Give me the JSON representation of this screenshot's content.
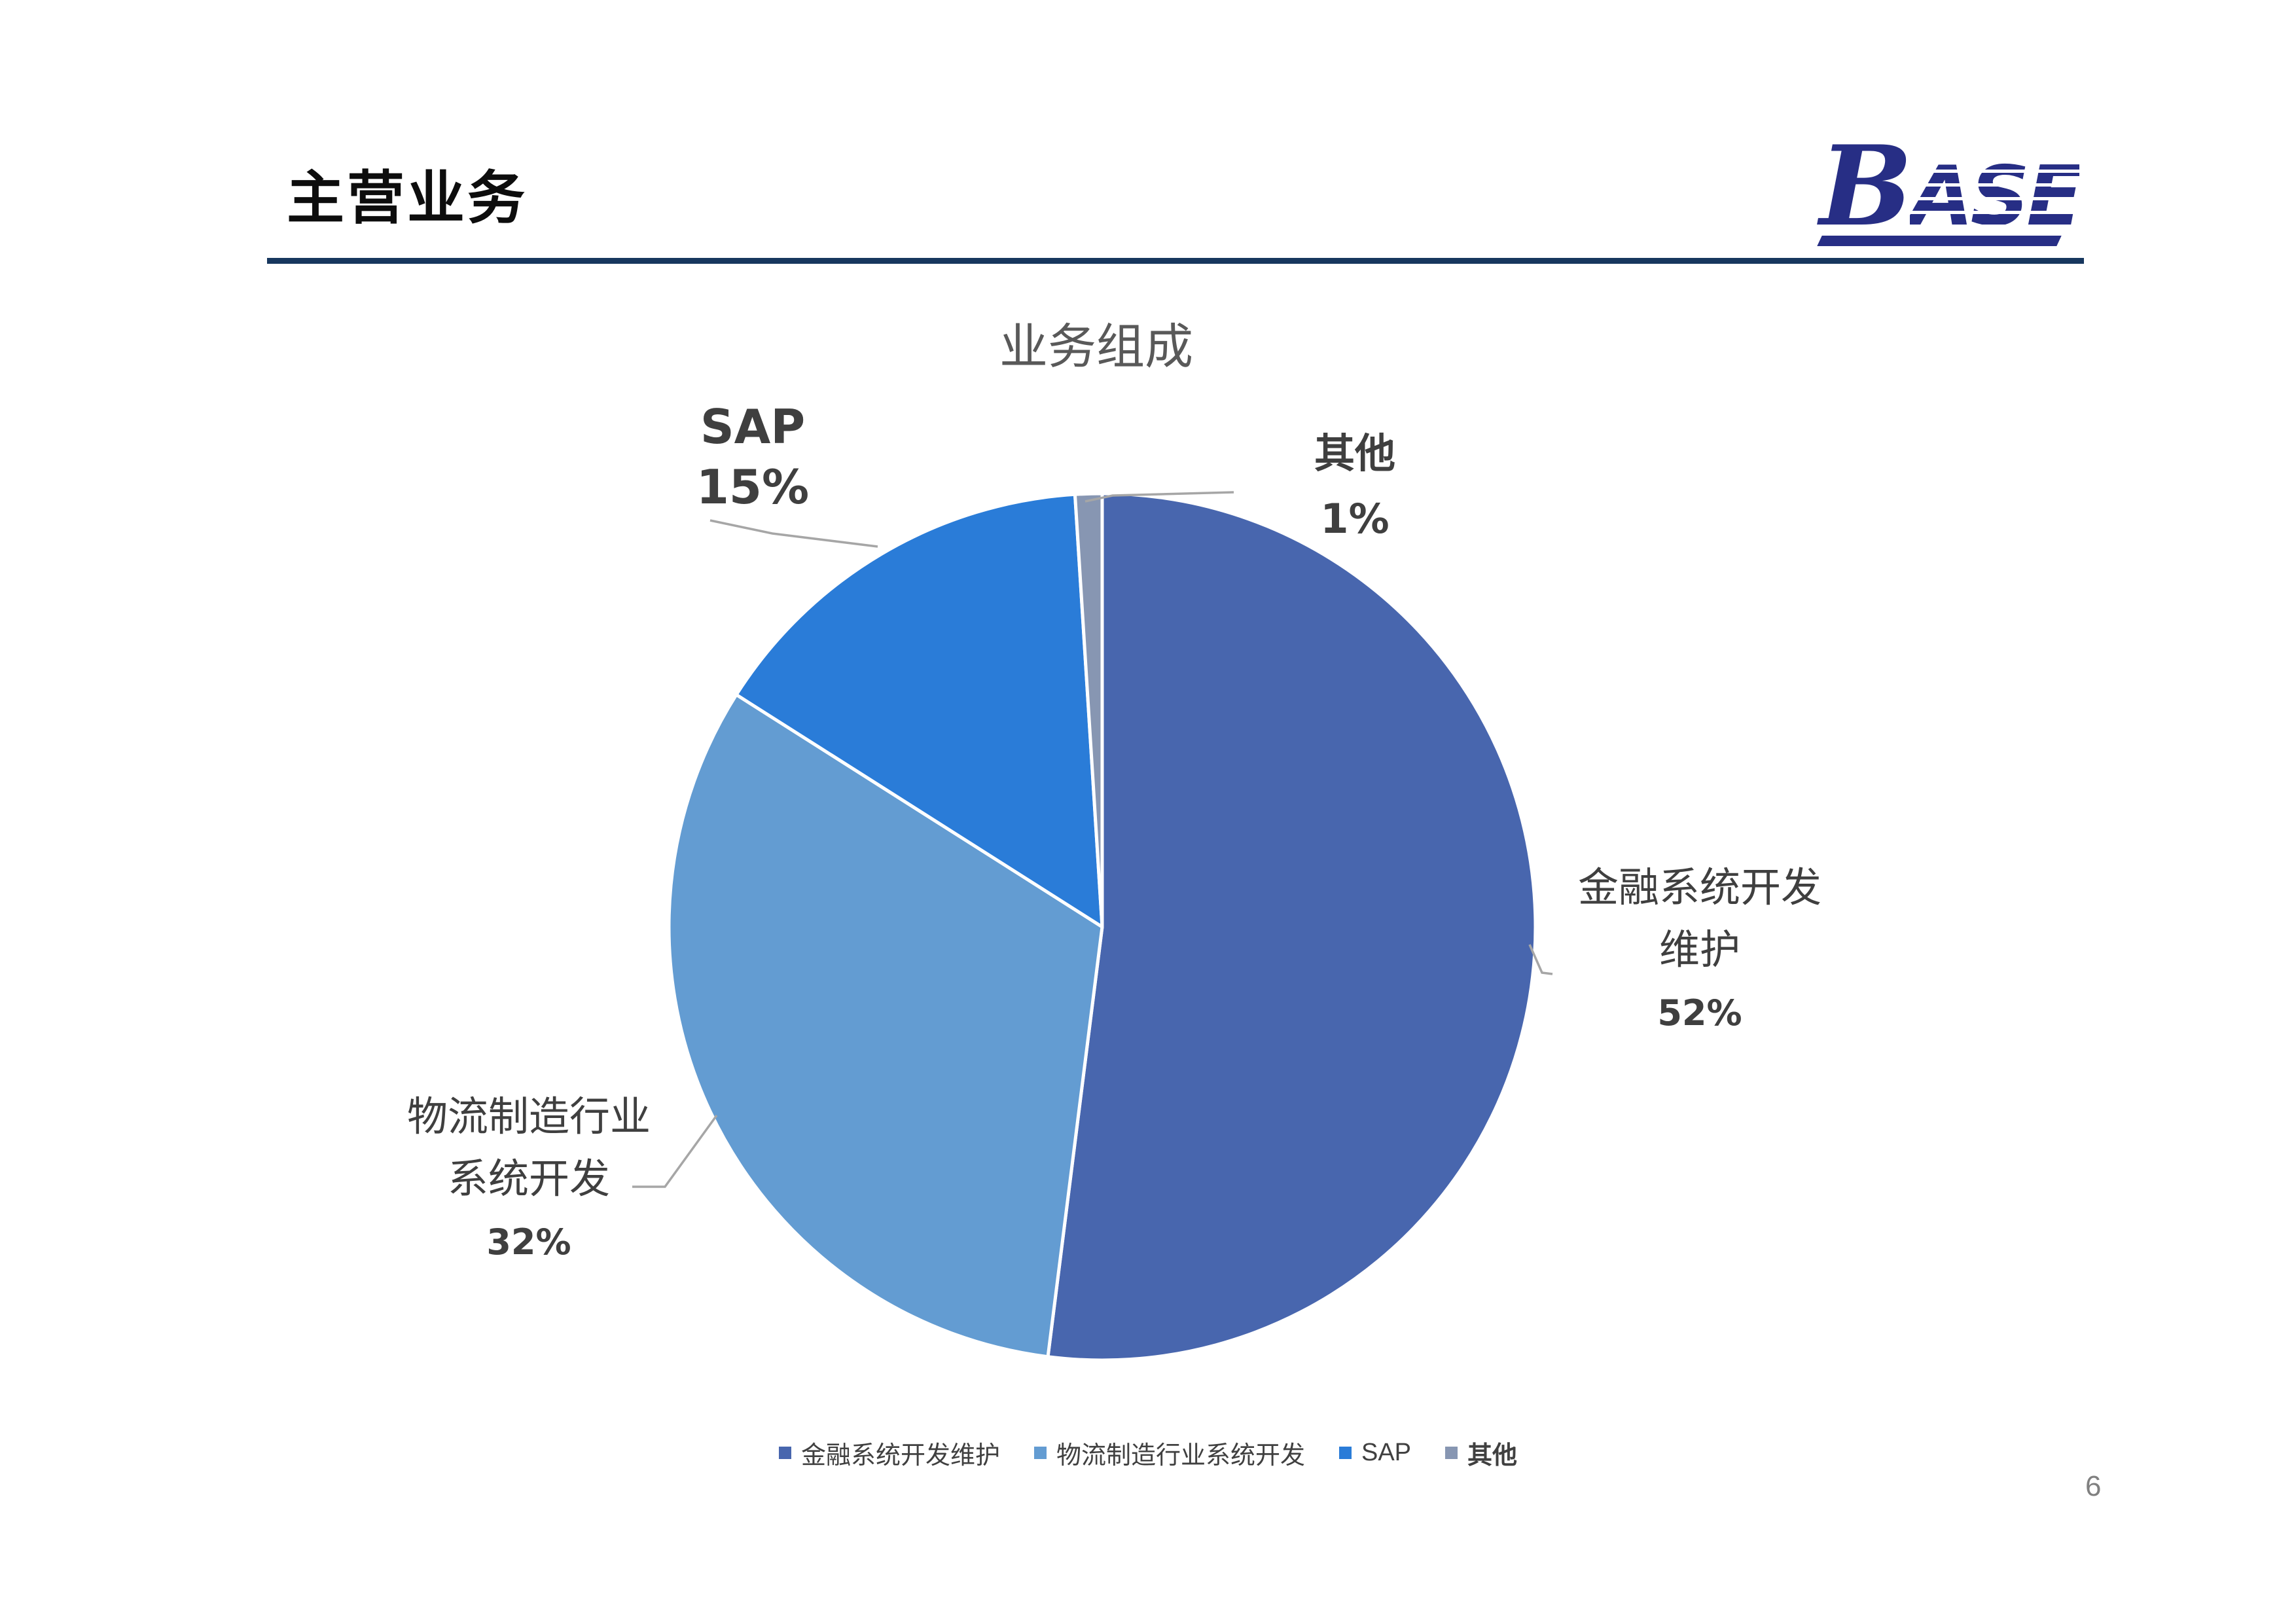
{
  "slide": {
    "title": "主营业务",
    "page_number": "6"
  },
  "logo": {
    "b": "B",
    "ase": "ASE",
    "color": "#272e85"
  },
  "chart": {
    "title": "业务组成",
    "callouts": {
      "finance": {
        "line1": "金融系统开发",
        "line2": "维护",
        "pct": "52%"
      },
      "logistics": {
        "line1": "物流制造行业",
        "line2": "系统开发",
        "pct": "32%"
      },
      "sap": {
        "name": "SAP",
        "pct": "15%"
      },
      "other": {
        "name": "其他",
        "pct": "1%"
      }
    },
    "legend": {
      "items": [
        {
          "label": "金融系统开发维护",
          "color": "#4866ae"
        },
        {
          "label": "物流制造行业系统开发",
          "color": "#639cd2"
        },
        {
          "label": "SAP",
          "color": "#2a7cd8"
        },
        {
          "label": "其他",
          "color": "#8796b2"
        }
      ]
    }
  },
  "chart_data": {
    "type": "pie",
    "title": "业务组成",
    "labels": [
      "金融系统开发维护",
      "物流制造行业系统开发",
      "SAP",
      "其他"
    ],
    "values": [
      52,
      32,
      15,
      1
    ],
    "unit": "%",
    "colors": [
      "#4866ae",
      "#639cd2",
      "#2a7cd8",
      "#8796b2"
    ],
    "start_angle_deg": 0,
    "direction": "clockwise",
    "legend_position": "bottom",
    "data_labels": [
      "金融系统开发维护 52%",
      "物流制造行业系统开发 32%",
      "SAP 15%",
      "其他 1%"
    ]
  }
}
